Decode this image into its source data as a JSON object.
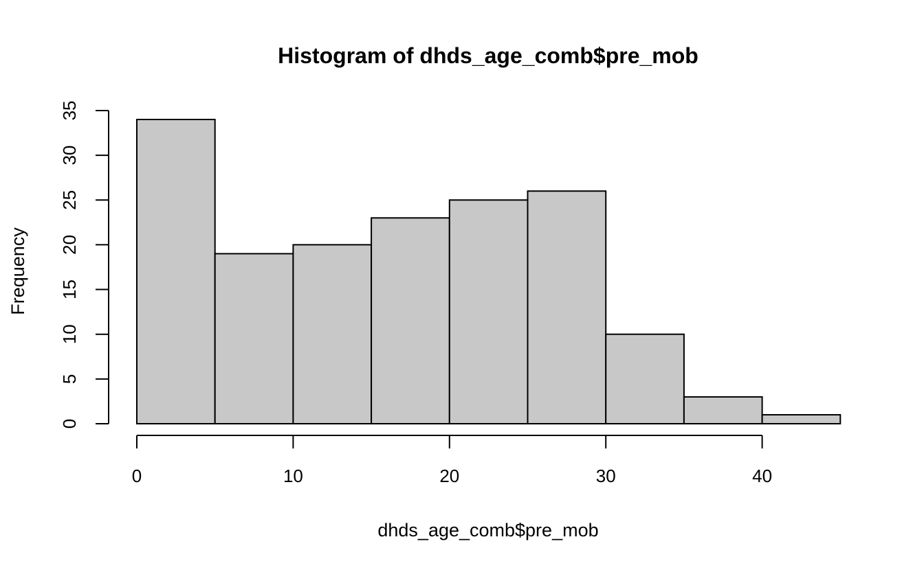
{
  "chart_data": {
    "type": "bar",
    "title": "Histogram of dhds_age_comb$pre_mob",
    "xlabel": "dhds_age_comb$pre_mob",
    "ylabel": "Frequency",
    "bins": [
      {
        "start": 0,
        "end": 5,
        "count": 34
      },
      {
        "start": 5,
        "end": 10,
        "count": 19
      },
      {
        "start": 10,
        "end": 15,
        "count": 20
      },
      {
        "start": 15,
        "end": 20,
        "count": 23
      },
      {
        "start": 20,
        "end": 25,
        "count": 25
      },
      {
        "start": 25,
        "end": 30,
        "count": 26
      },
      {
        "start": 30,
        "end": 35,
        "count": 10
      },
      {
        "start": 35,
        "end": 40,
        "count": 3
      },
      {
        "start": 40,
        "end": 45,
        "count": 1
      }
    ],
    "xlim": [
      0,
      45
    ],
    "ylim": [
      0,
      35
    ],
    "x_ticks": [
      0,
      10,
      20,
      30,
      40
    ],
    "y_ticks": [
      0,
      5,
      10,
      15,
      20,
      25,
      30,
      35
    ],
    "bar_color": "#c8c8c8",
    "grid": false,
    "legend": "none"
  }
}
